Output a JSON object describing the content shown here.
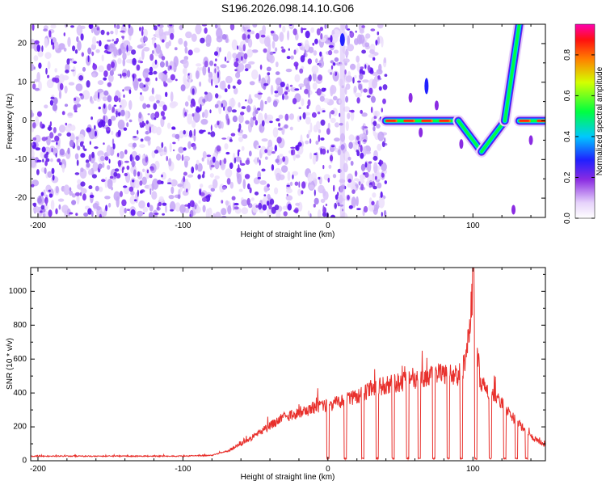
{
  "title": "S196.2026.098.14.10.G06",
  "colors": {
    "snr_line": "#e8302c",
    "spectro_noise": "#7a2cf0",
    "spectro_noise_light": "#cdb3f7"
  },
  "chart_data": [
    {
      "type": "heatmap",
      "xlabel": "Height of straight line (km)",
      "ylabel": "Frequency (Hz)",
      "xlim": [
        -205,
        150
      ],
      "ylim": [
        -25,
        25
      ],
      "x_ticks": [
        -200,
        -100,
        0,
        100
      ],
      "y_ticks": [
        -20,
        -10,
        0,
        10,
        20
      ],
      "noise_region_x": [
        -205,
        40
      ],
      "signal_segments": [
        {
          "x": [
            40,
            90
          ],
          "y": [
            0,
            0
          ],
          "note": "dashed carrier at 0 Hz"
        },
        {
          "x": [
            90,
            106
          ],
          "y": [
            0,
            -8
          ]
        },
        {
          "x": [
            106,
            122
          ],
          "y": [
            -8,
            0
          ]
        },
        {
          "x": [
            122,
            132
          ],
          "y": [
            0,
            25
          ]
        },
        {
          "x": [
            132,
            150
          ],
          "y": [
            0,
            0
          ]
        }
      ],
      "colorbar": {
        "label": "Normalized spectral amplitude",
        "ticks": [
          0.0,
          0.2,
          0.4,
          0.6,
          0.8
        ],
        "tick_labels": [
          "0.0",
          "0.2",
          "0.4",
          "0.6",
          "0.8"
        ],
        "range": [
          0,
          0.95
        ],
        "colormap": "rainbow (white → violet → blue → cyan → green → yellow → red → pink)"
      }
    },
    {
      "type": "line",
      "xlabel": "Height of straight line (km)",
      "ylabel": "SNR (10 * v/v)",
      "xlim": [
        -205,
        150
      ],
      "ylim": [
        0,
        1140
      ],
      "x_ticks": [
        -200,
        -100,
        0,
        100
      ],
      "y_ticks": [
        0,
        200,
        400,
        600,
        800,
        1000
      ],
      "series": [
        {
          "x": [
            -205,
            -150,
            -100,
            -80,
            -70,
            -60,
            -50,
            -40,
            -30,
            -20,
            -10,
            0,
            10,
            20,
            30,
            40,
            50,
            60,
            70,
            80,
            90,
            95,
            100,
            105,
            110,
            120,
            130,
            140,
            150
          ],
          "values": [
            30,
            30,
            30,
            35,
            60,
            110,
            170,
            230,
            290,
            320,
            350,
            370,
            390,
            430,
            470,
            500,
            520,
            540,
            560,
            580,
            560,
            650,
            1140,
            520,
            470,
            380,
            260,
            160,
            100
          ]
        }
      ],
      "dropouts_x": [
        0,
        12,
        24,
        34,
        45,
        55,
        63,
        73,
        83,
        92,
        102,
        112,
        122,
        130,
        137
      ]
    }
  ]
}
